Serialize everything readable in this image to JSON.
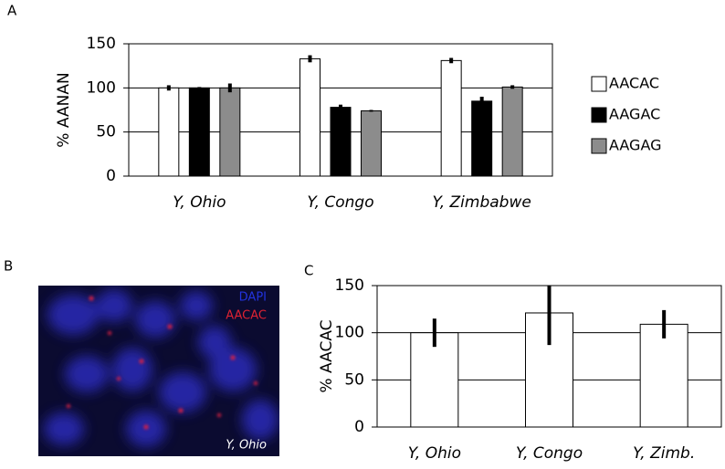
{
  "chart_data": [
    {
      "type": "bar",
      "panel_label": "A",
      "y_label": "% AANAN",
      "categories": [
        "Y, Ohio",
        "Y, Congo",
        "Y, Zimbabwe"
      ],
      "series": [
        {
          "name": "AACAC",
          "color": "#ffffff",
          "values": [
            100,
            133,
            131
          ],
          "errors": [
            3,
            4,
            3
          ]
        },
        {
          "name": "AAGAC",
          "color": "#000000",
          "values": [
            100,
            78,
            85
          ],
          "errors": [
            1,
            3,
            5
          ]
        },
        {
          "name": "AAGAG",
          "color": "#8c8c8c",
          "values": [
            100,
            74,
            101
          ],
          "errors": [
            5,
            1,
            2
          ]
        }
      ],
      "ylim": [
        0,
        150
      ],
      "yticks": [
        0,
        50,
        100,
        150
      ],
      "grid": true,
      "legend": "right"
    },
    {
      "type": "bar",
      "panel_label": "C",
      "y_label": "% AACAC",
      "categories": [
        "Y, Ohio",
        "Y, Congo",
        "Y, Zimb."
      ],
      "values": [
        100,
        121,
        109
      ],
      "errors": [
        15,
        34,
        15
      ],
      "color": "#ffffff",
      "ylim": [
        0,
        150
      ],
      "yticks": [
        0,
        50,
        100,
        150
      ],
      "grid": true
    }
  ],
  "image": {
    "panel_label": "B",
    "labels": [
      "DAPI",
      "AACAC"
    ],
    "caption": "Y, Ohio"
  }
}
